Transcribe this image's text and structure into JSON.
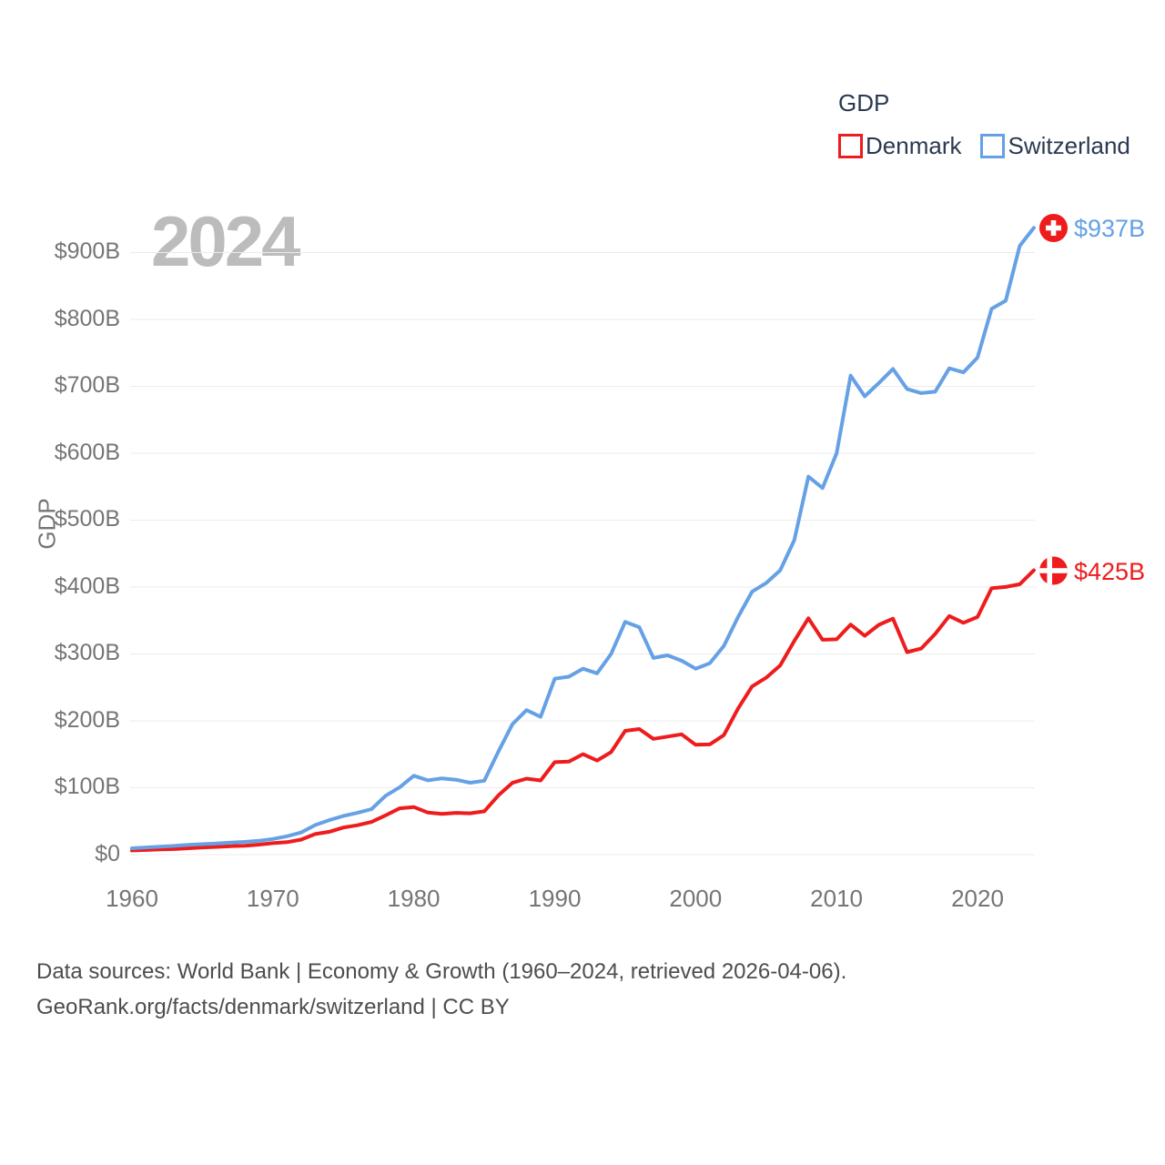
{
  "legend": {
    "title": "GDP",
    "items": [
      {
        "label": "Denmark",
        "color": "#ee1c1c"
      },
      {
        "label": "Switzerland",
        "color": "#65a1e4"
      }
    ]
  },
  "watermark": "2024",
  "axes": {
    "y_title": "GDP",
    "y_ticks": [
      "$900B",
      "$800B",
      "$700B",
      "$600B",
      "$500B",
      "$400B",
      "$300B",
      "$200B",
      "$100B",
      "$0"
    ],
    "x_ticks": [
      "1960",
      "1970",
      "1980",
      "1990",
      "2000",
      "2010",
      "2020"
    ]
  },
  "end_labels": {
    "switzerland": "$937B",
    "denmark": "$425B"
  },
  "footer": {
    "line1": "Data sources: World Bank | Economy & Growth (1960–2024, retrieved 2026-04-06).",
    "line2": "GeoRank.org/facts/denmark/switzerland | CC BY"
  },
  "chart_data": {
    "type": "line",
    "title": "GDP",
    "xlabel": "",
    "ylabel": "GDP",
    "unit": "billion USD",
    "ylim": [
      0,
      900
    ],
    "y_tick_step": 100,
    "xlim": [
      1960,
      2024
    ],
    "grid": true,
    "legend_position": "top-right",
    "years": [
      1960,
      1961,
      1962,
      1963,
      1964,
      1965,
      1966,
      1967,
      1968,
      1969,
      1970,
      1971,
      1972,
      1973,
      1974,
      1975,
      1976,
      1977,
      1978,
      1979,
      1980,
      1981,
      1982,
      1983,
      1984,
      1985,
      1986,
      1987,
      1988,
      1989,
      1990,
      1991,
      1992,
      1993,
      1994,
      1995,
      1996,
      1997,
      1998,
      1999,
      2000,
      2001,
      2002,
      2003,
      2004,
      2005,
      2006,
      2007,
      2008,
      2009,
      2010,
      2011,
      2012,
      2013,
      2014,
      2015,
      2016,
      2017,
      2018,
      2019,
      2020,
      2021,
      2022,
      2023,
      2024
    ],
    "series": [
      {
        "name": "Denmark",
        "color": "#ee1c1c",
        "end_value_label": "$425B",
        "values": [
          6.2,
          6.9,
          7.8,
          8.3,
          9.5,
          10.7,
          11.6,
          12.7,
          13.2,
          15.0,
          17.1,
          18.6,
          22.5,
          30.7,
          34.1,
          40.5,
          43.9,
          48.9,
          58.8,
          69.2,
          71.1,
          62.8,
          61.0,
          62.4,
          61.8,
          64.7,
          88.6,
          107.4,
          113.6,
          110.9,
          138.2,
          139.1,
          150.2,
          140.7,
          153.2,
          185.1,
          187.8,
          173.0,
          176.4,
          179.9,
          164.2,
          164.8,
          178.6,
          218.1,
          251.4,
          264.5,
          282.9,
          319.4,
          353.4,
          321.2,
          321.9,
          344.0,
          327.1,
          343.6,
          352.8,
          302.7,
          308.0,
          329.9,
          356.8,
          346.5,
          355.2,
          398.3,
          400.2,
          404.2,
          425.0
        ]
      },
      {
        "name": "Switzerland",
        "color": "#65a1e4",
        "end_value_label": "$937B",
        "values": [
          9.5,
          10.8,
          12.0,
          13.1,
          14.5,
          15.7,
          16.7,
          18.0,
          19.1,
          20.7,
          23.4,
          27.5,
          33.0,
          44.2,
          51.5,
          57.8,
          62.5,
          68.0,
          88.0,
          100.8,
          118.0,
          111.0,
          114.0,
          112.0,
          107.5,
          110.5,
          154.0,
          195.0,
          216.0,
          206.0,
          263.0,
          266.0,
          278.0,
          271.0,
          300.0,
          348.0,
          340.0,
          294.0,
          298.0,
          290.0,
          278.0,
          286.0,
          312.0,
          355.0,
          393.0,
          406.0,
          425.0,
          470.0,
          565.0,
          548.0,
          600.0,
          716.0,
          685.0,
          705.0,
          726.0,
          696.0,
          690.0,
          692.0,
          727.0,
          721.0,
          743.0,
          816.0,
          828.0,
          910.0,
          937.0
        ]
      }
    ]
  }
}
